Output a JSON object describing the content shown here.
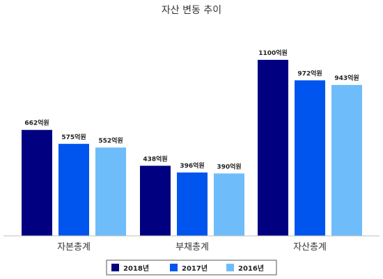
{
  "chart_data": {
    "type": "bar",
    "title": "자산 변동 추이",
    "categories": [
      "자본총계",
      "부채총계",
      "자산총계"
    ],
    "series": [
      {
        "name": "2018년",
        "color": "#000080",
        "values": [
          662,
          438,
          1100
        ]
      },
      {
        "name": "2017년",
        "color": "#0055ee",
        "values": [
          575,
          396,
          972
        ]
      },
      {
        "name": "2016년",
        "color": "#6ebdfa",
        "values": [
          552,
          390,
          943
        ]
      }
    ],
    "value_suffix": "억원",
    "ylim": [
      0,
      1100
    ],
    "grid": false,
    "legend_position": "bottom"
  }
}
